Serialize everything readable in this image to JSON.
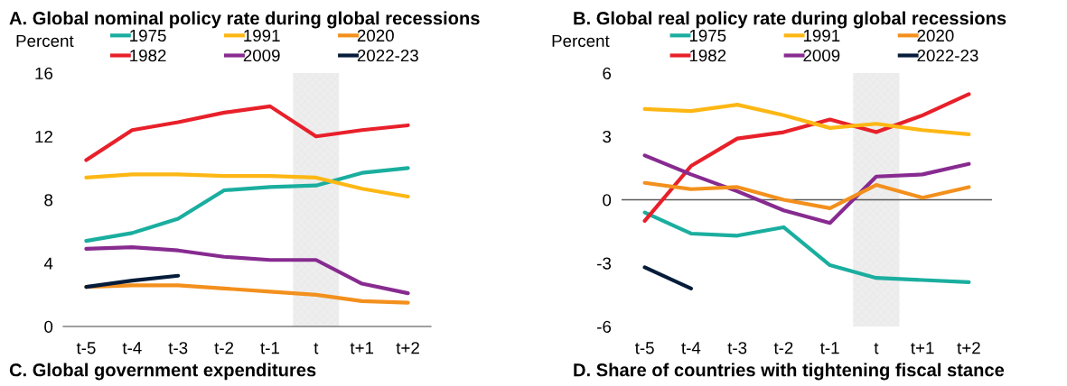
{
  "chart_data": [
    {
      "type": "line",
      "title": "A. Global nominal policy rate during global recessions",
      "ylabel": "Percent",
      "categories": [
        "t-5",
        "t-4",
        "t-3",
        "t-2",
        "t-1",
        "t",
        "t+1",
        "t+2"
      ],
      "ylim": [
        0,
        16
      ],
      "yticks": [
        0,
        4,
        8,
        12,
        16
      ],
      "grid": false,
      "legend": "top",
      "marker": "none",
      "line_style": "solid",
      "series": [
        {
          "name": "1975",
          "color": "#1aae9f",
          "values": [
            5.4,
            5.9,
            6.8,
            8.6,
            8.8,
            8.9,
            9.7,
            10.0
          ]
        },
        {
          "name": "1982",
          "color": "#e8202a",
          "values": [
            10.5,
            12.4,
            12.9,
            13.5,
            13.9,
            12.0,
            12.4,
            12.7
          ]
        },
        {
          "name": "1991",
          "color": "#fdb714",
          "values": [
            9.4,
            9.6,
            9.6,
            9.5,
            9.5,
            9.4,
            8.7,
            8.2
          ]
        },
        {
          "name": "2009",
          "color": "#872b90",
          "values": [
            4.9,
            5.0,
            4.8,
            4.4,
            4.2,
            4.2,
            2.7,
            2.1
          ]
        },
        {
          "name": "2020",
          "color": "#f3901d",
          "values": [
            2.5,
            2.6,
            2.6,
            2.4,
            2.2,
            2.0,
            1.6,
            1.5
          ]
        },
        {
          "name": "2022-23",
          "color": "#051c3a",
          "values": [
            2.5,
            2.9,
            3.2,
            null,
            null,
            null,
            null,
            null
          ]
        }
      ],
      "bands": [
        {
          "axis": "x",
          "from": "t",
          "to": "t",
          "color": "#d9d9d9"
        }
      ],
      "annotations": [
        "C. Global government expenditures"
      ]
    },
    {
      "type": "line",
      "title": "B. Global real policy rate during global recessions",
      "ylabel": "Percent",
      "categories": [
        "t-5",
        "t-4",
        "t-3",
        "t-2",
        "t-1",
        "t",
        "t+1",
        "t+2"
      ],
      "ylim": [
        -6,
        6
      ],
      "yticks": [
        -6,
        -3,
        0,
        3,
        6
      ],
      "grid": false,
      "legend": "top",
      "marker": "none",
      "line_style": "solid",
      "series": [
        {
          "name": "1975",
          "color": "#1aae9f",
          "values": [
            -0.6,
            -1.6,
            -1.7,
            -1.3,
            -3.1,
            -3.7,
            -3.8,
            -3.9
          ]
        },
        {
          "name": "1982",
          "color": "#e8202a",
          "values": [
            -1.0,
            1.6,
            2.9,
            3.2,
            3.8,
            3.2,
            4.0,
            5.0
          ]
        },
        {
          "name": "1991",
          "color": "#fdb714",
          "values": [
            4.3,
            4.2,
            4.5,
            4.0,
            3.4,
            3.6,
            3.3,
            3.1
          ]
        },
        {
          "name": "2009",
          "color": "#872b90",
          "values": [
            2.1,
            1.2,
            0.4,
            -0.5,
            -1.1,
            1.1,
            1.2,
            1.7
          ]
        },
        {
          "name": "2020",
          "color": "#f3901d",
          "values": [
            0.8,
            0.5,
            0.6,
            0.0,
            -0.4,
            0.7,
            0.1,
            0.6
          ]
        },
        {
          "name": "2022-23",
          "color": "#051c3a",
          "values": [
            -3.2,
            -4.2,
            null,
            null,
            null,
            null,
            null,
            null
          ]
        }
      ],
      "bands": [
        {
          "axis": "x",
          "from": "t",
          "to": "t",
          "color": "#d9d9d9"
        }
      ],
      "ref_lines": [
        {
          "axis": "y",
          "value": 0,
          "color": "#595959"
        }
      ],
      "annotations": [
        "D. Share of countries with tightening fiscal stance"
      ]
    }
  ]
}
